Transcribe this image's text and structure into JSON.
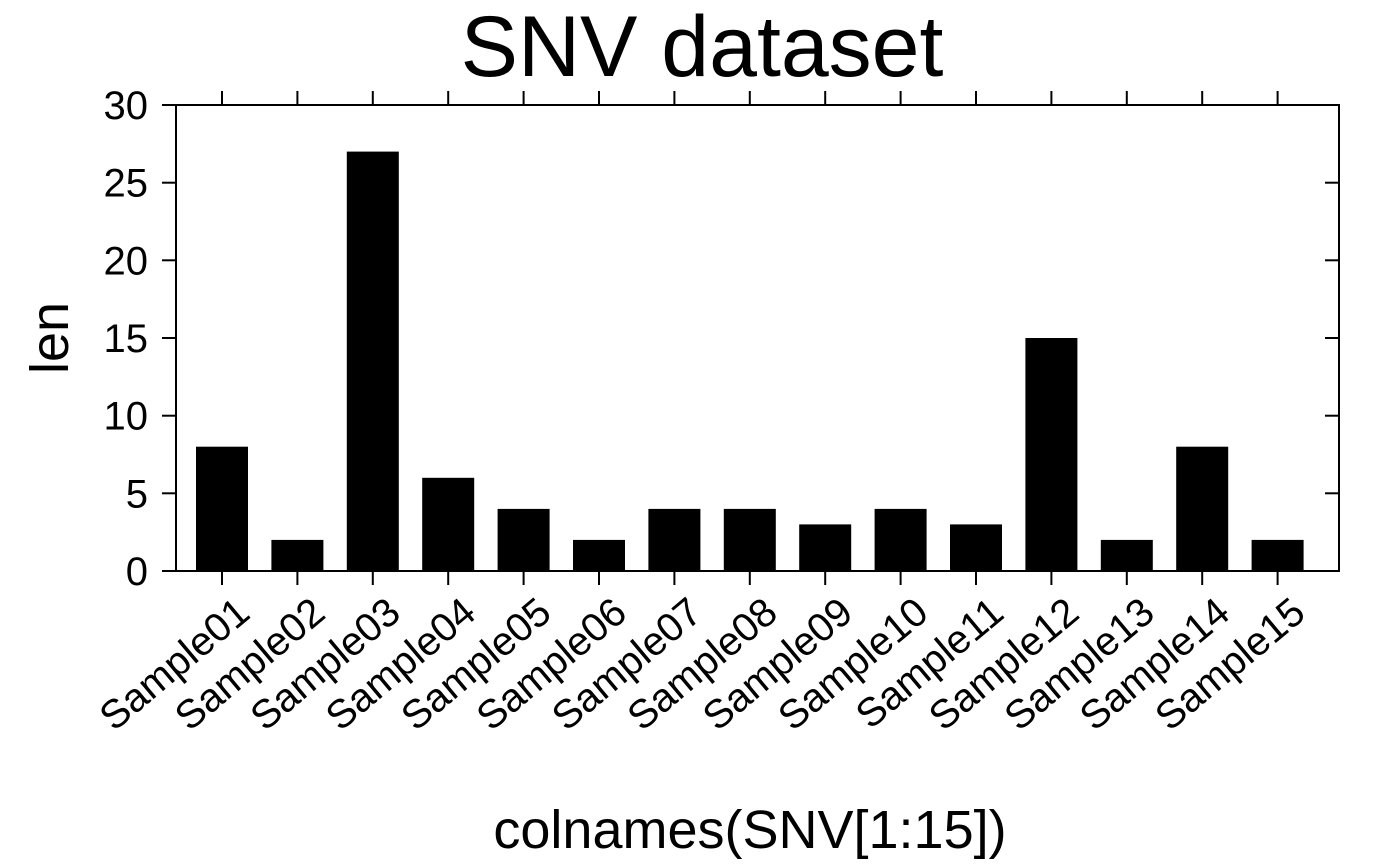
{
  "chart_data": {
    "type": "bar",
    "title": "SNV dataset",
    "xlabel": "colnames(SNV[1:15])",
    "ylabel": "len",
    "ylim": [
      0,
      30
    ],
    "yticks": [
      0,
      5,
      10,
      15,
      20,
      25,
      30
    ],
    "categories": [
      "Sample01",
      "Sample02",
      "Sample03",
      "Sample04",
      "Sample05",
      "Sample06",
      "Sample07",
      "Sample08",
      "Sample09",
      "Sample10",
      "Sample11",
      "Sample12",
      "Sample13",
      "Sample14",
      "Sample15"
    ],
    "values": [
      8,
      2,
      27,
      6,
      4,
      2,
      4,
      4,
      3,
      4,
      3,
      15,
      2,
      8,
      2
    ],
    "bar_color": "#000000",
    "grid": false,
    "legend": false
  }
}
